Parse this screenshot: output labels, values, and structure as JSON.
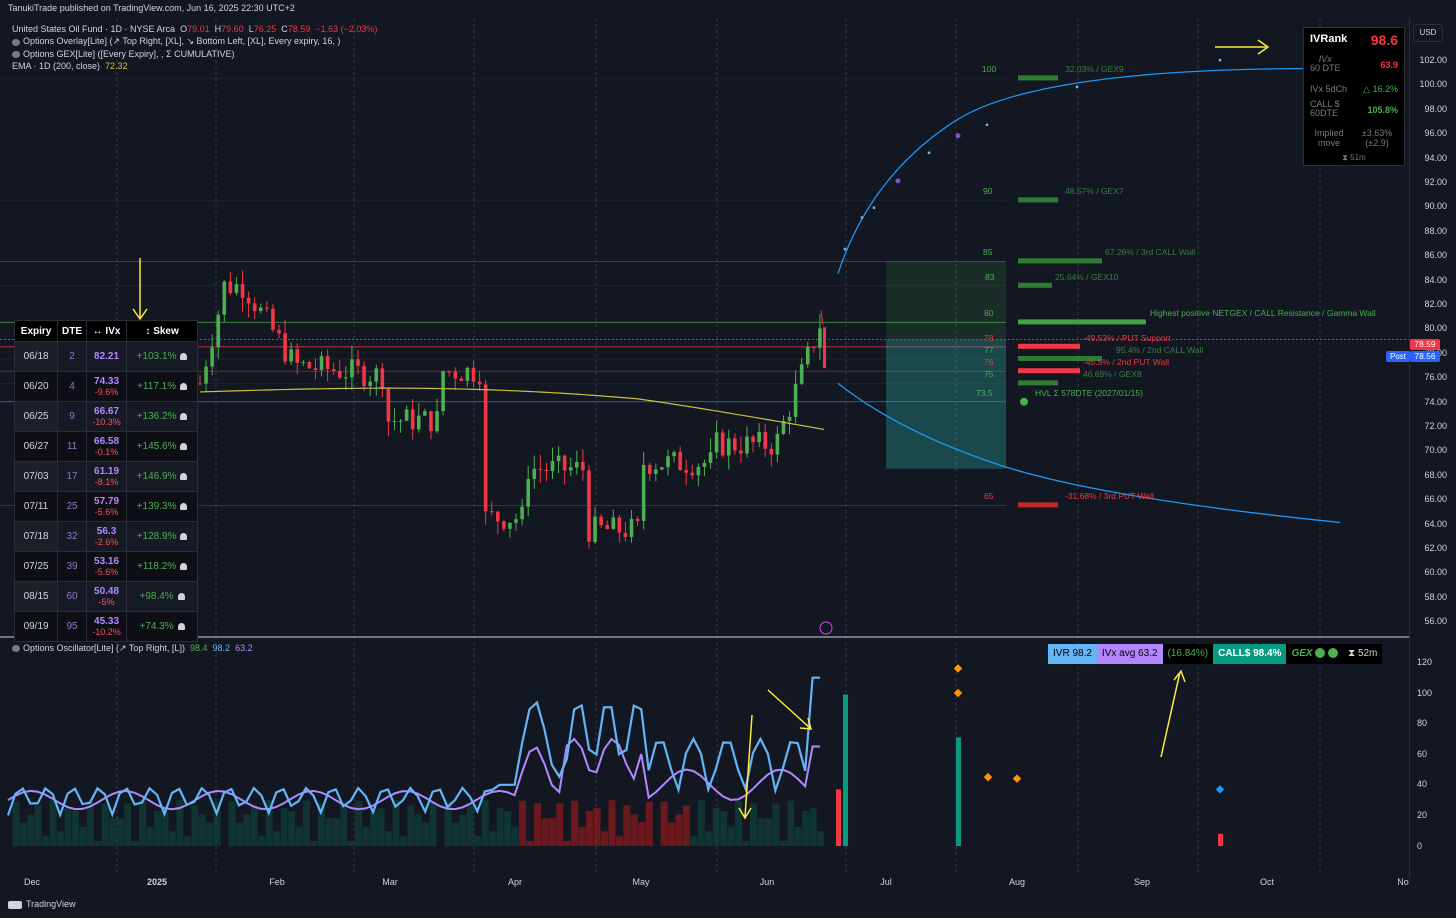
{
  "header": {
    "publisher": "TanukiTrade published on TradingView.com, Jun 16, 2025 22:30 UTC+2",
    "symbol_line": "United States Oil Fund · 1D · NYSE Arca",
    "ohlc": {
      "o_label": "O",
      "o": "79.01",
      "h_label": "H",
      "h": "79.60",
      "l_label": "L",
      "l": "76.25",
      "c_label": "C",
      "c": "78.59",
      "change": "−1.63 (−2.03%)"
    },
    "indicator1": "Options Overlay[Lite] (↗ Top Right, [XL], ↘ Bottom Left, [XL], Every expiry, 16, )",
    "indicator2": "Options GEX[Lite] ([Every Expiry], , Σ CUMULATIVE)",
    "ema_label": "EMA · 1D (200, close)",
    "ema_value": "72.32"
  },
  "price_axis": {
    "currency_button": "USD",
    "ticks": [
      "102.00",
      "100.00",
      "98.00",
      "96.00",
      "94.00",
      "92.00",
      "90.00",
      "88.00",
      "86.00",
      "84.00",
      "82.00",
      "80.00",
      "78.00",
      "76.00",
      "74.00",
      "72.00",
      "70.00",
      "68.00",
      "66.00",
      "64.00",
      "62.00",
      "60.00",
      "58.00",
      "56.00"
    ],
    "last_price": "78.59",
    "post_price": "78.56",
    "post_label": "Post"
  },
  "time_axis": {
    "labels": [
      "Dec",
      "2025",
      "Feb",
      "Mar",
      "Apr",
      "May",
      "Jun",
      "Jul",
      "Aug",
      "Sep",
      "Oct",
      "No"
    ]
  },
  "footer": {
    "brand": "TradingView"
  },
  "expiry_table": {
    "headers": [
      "Expiry",
      "DTE",
      "↔ IVx",
      "↕ Skew"
    ],
    "rows": [
      {
        "expiry": "06/18",
        "dte": "2",
        "ivx": "82.21",
        "chg": "",
        "skew": "+103.1%"
      },
      {
        "expiry": "06/20",
        "dte": "4",
        "ivx": "74.33",
        "chg": "-9.6%",
        "skew": "+117.1%"
      },
      {
        "expiry": "06/25",
        "dte": "9",
        "ivx": "66.67",
        "chg": "-10.3%",
        "skew": "+136.2%"
      },
      {
        "expiry": "06/27",
        "dte": "11",
        "ivx": "66.58",
        "chg": "-0.1%",
        "skew": "+145.6%"
      },
      {
        "expiry": "07/03",
        "dte": "17",
        "ivx": "61.19",
        "chg": "-8.1%",
        "skew": "+146.9%"
      },
      {
        "expiry": "07/11",
        "dte": "25",
        "ivx": "57.79",
        "chg": "-5.6%",
        "skew": "+139.3%"
      },
      {
        "expiry": "07/18",
        "dte": "32",
        "ivx": "56.3",
        "chg": "-2.6%",
        "skew": "+128.9%"
      },
      {
        "expiry": "07/25",
        "dte": "39",
        "ivx": "53.16",
        "chg": "-5.6%",
        "skew": "+118.2%"
      },
      {
        "expiry": "08/15",
        "dte": "60",
        "ivx": "50.48",
        "chg": "-5%",
        "skew": "+98.4%"
      },
      {
        "expiry": "09/19",
        "dte": "95",
        "ivx": "45.33",
        "chg": "-10.2%",
        "skew": "+74.3%"
      }
    ]
  },
  "ivr_panel": {
    "ivrank_label": "IVRank",
    "ivrank_value": "98.6",
    "ivx_label": "IVx",
    "ivx_sub": "60 DTE",
    "ivx_value": "63.9",
    "ivx5d_label": "IVx 5dCh",
    "ivx5d_value": "△ 16.2%",
    "call_label": "CALL $",
    "call_sub": "60DTE",
    "call_value": "105.8%",
    "implied_label": "Implied move",
    "implied_value": "±3.63% (±2.9)",
    "timer": "⧗ 51m"
  },
  "gex_levels": [
    {
      "strike": "100",
      "label": "32.03% / GEX9",
      "color": "#4caf50"
    },
    {
      "strike": "90",
      "label": "48.57% / GEX7",
      "color": "#4caf50"
    },
    {
      "strike": "85",
      "label": "67.26% / 3rd CALL Wall",
      "color": "#4caf50"
    },
    {
      "strike": "83",
      "label": "25.64% / GEX10",
      "color": "#4caf50"
    },
    {
      "strike": "80",
      "label": "Highest positive NETGEX / CALL Resistance / Gamma Wall",
      "color": "#4caf50"
    },
    {
      "strike": "78",
      "label": "-49.53% / PUT Support",
      "color": "#f23645"
    },
    {
      "strike": "77",
      "label": "95.4% / 2nd CALL Wall",
      "color": "#4caf50"
    },
    {
      "strike": "76",
      "label": "-45.5% / 2nd PUT Wall",
      "color": "#f23645"
    },
    {
      "strike": "75",
      "label": "46.69% / GEX8",
      "color": "#4caf50"
    },
    {
      "strike": "73.5",
      "label": "HVL Σ 578DTE (2027/01/15)",
      "color": "#4caf50"
    },
    {
      "strike": "65",
      "label": "-31.68% / 3rd PUT Wall",
      "color": "#f23645"
    }
  ],
  "oscillator": {
    "legend": "Options Oscillator[Lite] (↗ Top Right, [L])",
    "v1": "98.4",
    "v2": "98.2",
    "v3": "63.2",
    "panel": {
      "ivr": "IVR 98.2",
      "ivx_avg": "IVx avg 63.2",
      "pct": "(16.84%)",
      "calls": "CALL$ 98.4%",
      "gex": "GEX",
      "timer": "⧗ 52m"
    },
    "ticks": [
      "120",
      "100",
      "80",
      "60",
      "40",
      "20",
      "0"
    ]
  },
  "colors": {
    "background": "#131722",
    "bull": "#4caf50",
    "bear": "#f23645",
    "ivx_line": "#b388ff",
    "ivr_line": "#64b5f6",
    "accent": "#2196f3",
    "annotation": "#ffeb3b"
  }
}
